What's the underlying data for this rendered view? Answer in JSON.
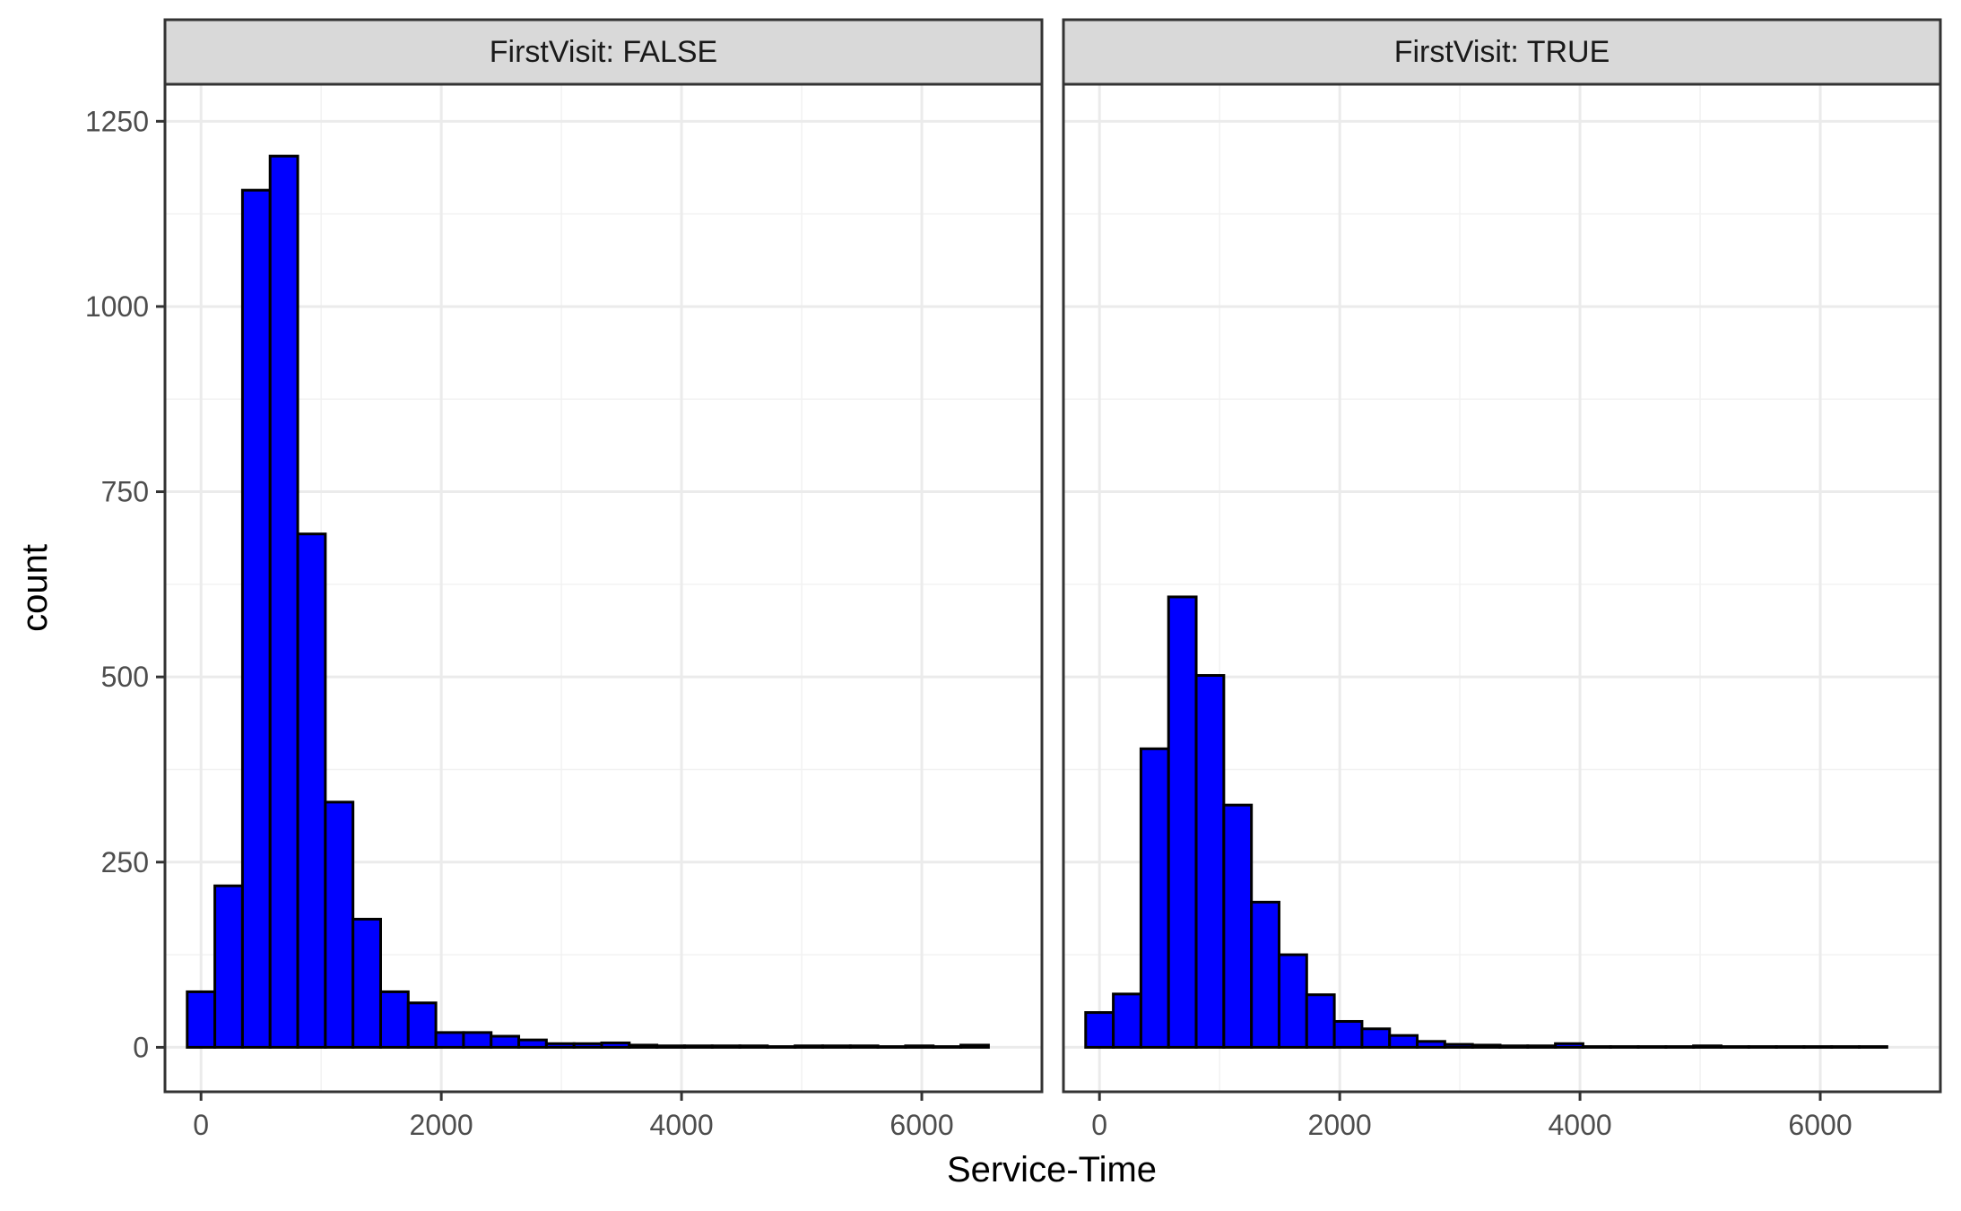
{
  "chart_data": {
    "type": "bar",
    "subtype": "faceted-histogram",
    "xlabel": "Service-Time",
    "ylabel": "count",
    "xlim": [
      -300,
      7000
    ],
    "ylim": [
      -60,
      1300
    ],
    "x_ticks": [
      0,
      2000,
      4000,
      6000
    ],
    "y_ticks": [
      0,
      250,
      500,
      750,
      1000,
      1250
    ],
    "bin_width": 230,
    "bar_fill": "#0000ff",
    "bar_outline": "#000000",
    "grid": true,
    "facets": [
      {
        "strip_label": "FirstVisit: FALSE",
        "bins": [
          {
            "x": 0,
            "count": 75
          },
          {
            "x": 230,
            "count": 218
          },
          {
            "x": 460,
            "count": 1157
          },
          {
            "x": 690,
            "count": 1203
          },
          {
            "x": 920,
            "count": 693
          },
          {
            "x": 1150,
            "count": 331
          },
          {
            "x": 1380,
            "count": 173
          },
          {
            "x": 1610,
            "count": 75
          },
          {
            "x": 1840,
            "count": 60
          },
          {
            "x": 2070,
            "count": 20
          },
          {
            "x": 2300,
            "count": 20
          },
          {
            "x": 2530,
            "count": 15
          },
          {
            "x": 2760,
            "count": 10
          },
          {
            "x": 2990,
            "count": 5
          },
          {
            "x": 3220,
            "count": 5
          },
          {
            "x": 3450,
            "count": 6
          },
          {
            "x": 3680,
            "count": 3
          },
          {
            "x": 3910,
            "count": 2
          },
          {
            "x": 4140,
            "count": 2
          },
          {
            "x": 4370,
            "count": 2
          },
          {
            "x": 4600,
            "count": 2
          },
          {
            "x": 4830,
            "count": 1
          },
          {
            "x": 5060,
            "count": 2
          },
          {
            "x": 5290,
            "count": 2
          },
          {
            "x": 5520,
            "count": 2
          },
          {
            "x": 5750,
            "count": 1
          },
          {
            "x": 5980,
            "count": 2
          },
          {
            "x": 6210,
            "count": 1
          },
          {
            "x": 6440,
            "count": 3
          }
        ]
      },
      {
        "strip_label": "FirstVisit: TRUE",
        "bins": [
          {
            "x": 0,
            "count": 47
          },
          {
            "x": 230,
            "count": 72
          },
          {
            "x": 460,
            "count": 403
          },
          {
            "x": 690,
            "count": 608
          },
          {
            "x": 920,
            "count": 502
          },
          {
            "x": 1150,
            "count": 327
          },
          {
            "x": 1380,
            "count": 196
          },
          {
            "x": 1610,
            "count": 125
          },
          {
            "x": 1840,
            "count": 71
          },
          {
            "x": 2070,
            "count": 35
          },
          {
            "x": 2300,
            "count": 25
          },
          {
            "x": 2530,
            "count": 16
          },
          {
            "x": 2760,
            "count": 8
          },
          {
            "x": 2990,
            "count": 4
          },
          {
            "x": 3220,
            "count": 3
          },
          {
            "x": 3450,
            "count": 2
          },
          {
            "x": 3680,
            "count": 2
          },
          {
            "x": 3910,
            "count": 5
          },
          {
            "x": 4140,
            "count": 1
          },
          {
            "x": 4370,
            "count": 1
          },
          {
            "x": 4600,
            "count": 1
          },
          {
            "x": 4830,
            "count": 1
          },
          {
            "x": 5060,
            "count": 2
          },
          {
            "x": 5290,
            "count": 1
          },
          {
            "x": 5520,
            "count": 1
          },
          {
            "x": 5750,
            "count": 1
          },
          {
            "x": 5980,
            "count": 1
          },
          {
            "x": 6210,
            "count": 1
          },
          {
            "x": 6440,
            "count": 1
          }
        ]
      }
    ]
  }
}
